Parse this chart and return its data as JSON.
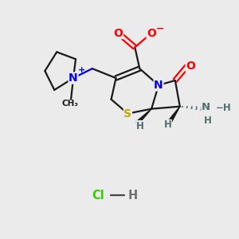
{
  "bg_color": "#ebebeb",
  "bond_color": "#1a1a1a",
  "bond_width": 1.6,
  "atom_colors": {
    "O": "#ff0000",
    "N": "#0000ee",
    "S": "#bbaa00",
    "H_stereo": "#507070",
    "C": "#1a1a1a",
    "Cl": "#33cc00",
    "NH": "#507070",
    "Nplus": "#0000ee"
  },
  "font_size": 9.5,
  "small_font": 8.0,
  "fig_w": 3.0,
  "fig_h": 3.0,
  "dpi": 100,
  "xlim": [
    0,
    10
  ],
  "ylim": [
    0,
    10
  ]
}
